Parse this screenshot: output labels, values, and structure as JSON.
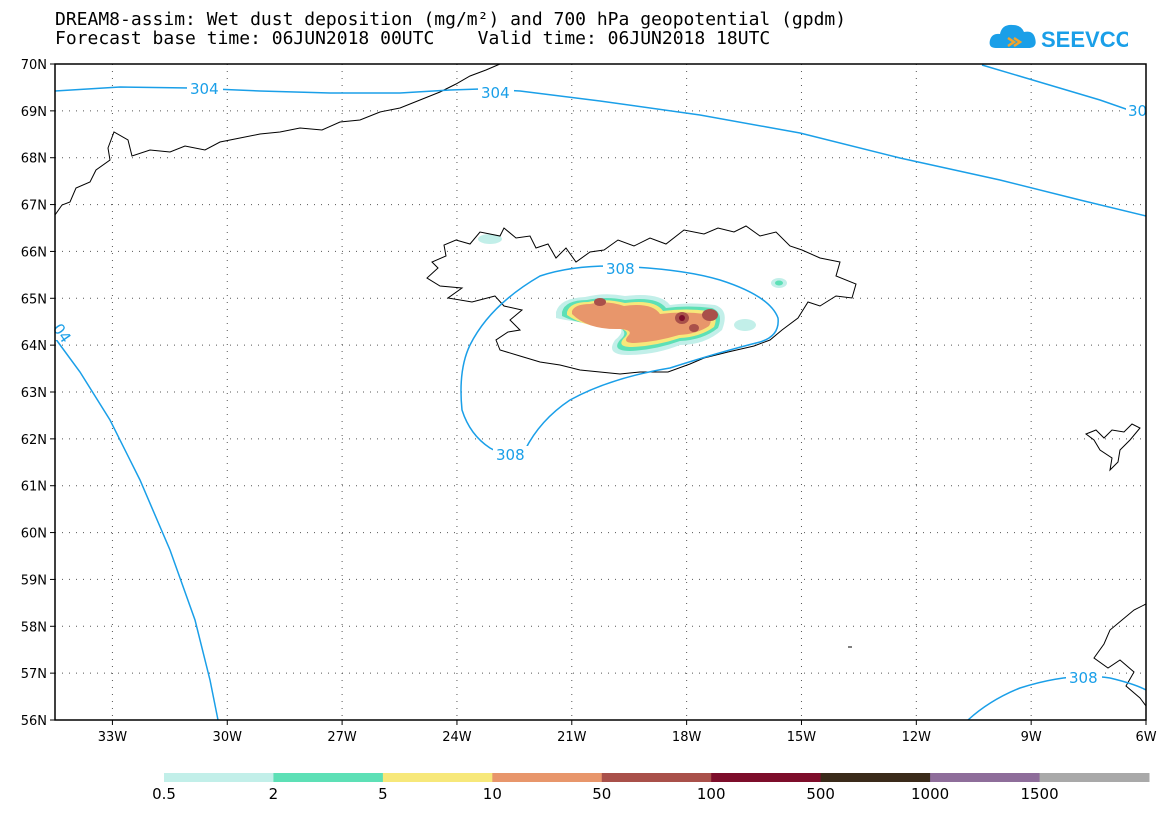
{
  "title_line1": "DREAM8-assim: Wet dust deposition (mg/m²) and 700 hPa geopotential (gpdm)",
  "title_line2": "Forecast base time: 06JUN2018 00UTC    Valid time: 06JUN2018 18UTC",
  "logo_text": "SEEVCCC",
  "map": {
    "lat_range": [
      56,
      70
    ],
    "lon_range": [
      -34.5,
      -6
    ],
    "lat_ticks": [
      "56N",
      "57N",
      "58N",
      "59N",
      "60N",
      "61N",
      "62N",
      "63N",
      "64N",
      "65N",
      "66N",
      "67N",
      "68N",
      "69N",
      "70N"
    ],
    "lon_ticks": [
      "33W",
      "30W",
      "27W",
      "24W",
      "21W",
      "18W",
      "15W",
      "12W",
      "9W",
      "6W"
    ],
    "contour_labels": [
      "304",
      "304",
      "30",
      "04",
      "308",
      "308",
      "308"
    ],
    "contour_color": "#1a9fe8"
  },
  "colorbar": {
    "levels": [
      "0.5",
      "2",
      "5",
      "10",
      "50",
      "100",
      "500",
      "1000",
      "1500"
    ],
    "colors": [
      "#c2efe9",
      "#5de0b6",
      "#f7e87a",
      "#e8966b",
      "#a9504a",
      "#7d0d2a",
      "#3a2a1a",
      "#8e6d9a",
      "#a9a9a9"
    ]
  }
}
